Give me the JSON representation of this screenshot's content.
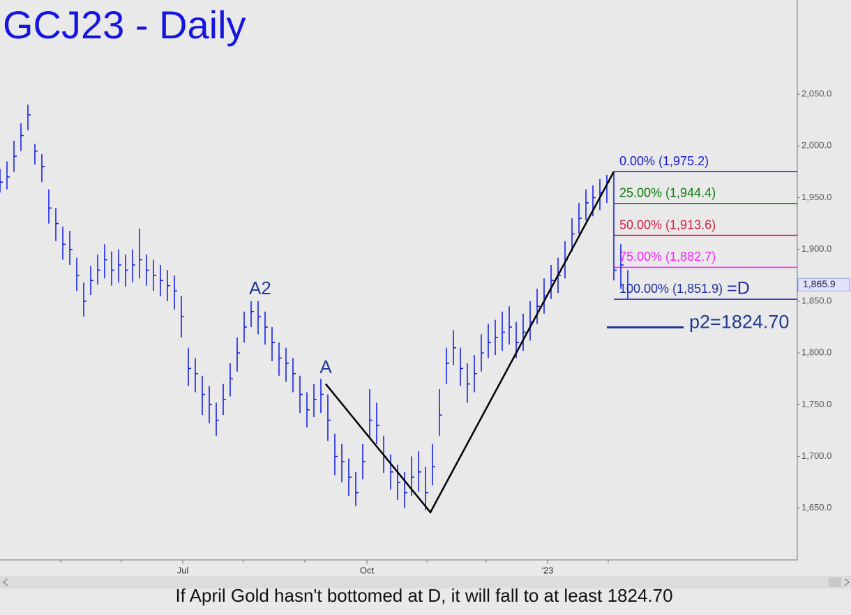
{
  "chart_data": {
    "type": "ohlc",
    "title": "GCJ23 - Daily",
    "caption": "If April Gold hasn't bottomed at D, it will fall to at least 1824.70",
    "color": "#0a14e6",
    "x": [
      0,
      1,
      2,
      3,
      4,
      5,
      6,
      7,
      8,
      9,
      10,
      11,
      12,
      13,
      14,
      15,
      16,
      17,
      18,
      19,
      20,
      21,
      22,
      23,
      24,
      25,
      26,
      27,
      28,
      29,
      30,
      31,
      32,
      33,
      34,
      35,
      36,
      37,
      38,
      39,
      40,
      41,
      42,
      43,
      44,
      45,
      46,
      47,
      48,
      49,
      50,
      51,
      52,
      53,
      54,
      55,
      56,
      57,
      58,
      59,
      60,
      61,
      62,
      63,
      64,
      65,
      66,
      67,
      68,
      69,
      70,
      71,
      72,
      73,
      74,
      75,
      76,
      77,
      78,
      79,
      80,
      81,
      82,
      83,
      84,
      85,
      86,
      87,
      88,
      89,
      90
    ],
    "high": [
      1978,
      1985,
      2005,
      2022,
      2040,
      2002,
      1992,
      1958,
      1940,
      1922,
      1918,
      1892,
      1868,
      1884,
      1895,
      1905,
      1898,
      1900,
      1895,
      1900,
      1920,
      1895,
      1890,
      1885,
      1880,
      1875,
      1855,
      1805,
      1795,
      1778,
      1768,
      1752,
      1770,
      1790,
      1815,
      1840,
      1850,
      1850,
      1840,
      1825,
      1810,
      1805,
      1795,
      1778,
      1762,
      1770,
      1775,
      1760,
      1722,
      1712,
      1698,
      1685,
      1712,
      1765,
      1752,
      1720,
      1702,
      1692,
      1685,
      1700,
      1705,
      1690,
      1712,
      1765,
      1805,
      1822,
      1805,
      1790,
      1798,
      1818,
      1828,
      1832,
      1840,
      1845,
      1830,
      1838,
      1850,
      1862,
      1872,
      1885,
      1892,
      1908,
      1930,
      1945,
      1958,
      1962,
      1968,
      1972,
      1975,
      1905,
      1880
    ],
    "low": [
      1955,
      1958,
      1975,
      1995,
      2015,
      1982,
      1965,
      1925,
      1908,
      1890,
      1885,
      1860,
      1835,
      1856,
      1866,
      1872,
      1865,
      1868,
      1864,
      1868,
      1872,
      1865,
      1860,
      1855,
      1850,
      1842,
      1815,
      1768,
      1762,
      1740,
      1732,
      1720,
      1740,
      1758,
      1782,
      1810,
      1825,
      1818,
      1808,
      1792,
      1778,
      1772,
      1762,
      1742,
      1728,
      1738,
      1742,
      1715,
      1682,
      1675,
      1662,
      1652,
      1678,
      1718,
      1712,
      1684,
      1668,
      1658,
      1650,
      1662,
      1666,
      1648,
      1672,
      1720,
      1770,
      1788,
      1768,
      1752,
      1762,
      1782,
      1795,
      1798,
      1802,
      1808,
      1795,
      1802,
      1812,
      1828,
      1838,
      1852,
      1858,
      1872,
      1898,
      1915,
      1928,
      1932,
      1938,
      1945,
      1870,
      1862,
      1852
    ],
    "close": [
      1965,
      1970,
      1990,
      2010,
      2030,
      1995,
      1980,
      1940,
      1925,
      1905,
      1900,
      1875,
      1850,
      1870,
      1880,
      1890,
      1880,
      1885,
      1880,
      1885,
      1890,
      1880,
      1875,
      1870,
      1865,
      1860,
      1835,
      1785,
      1780,
      1760,
      1750,
      1735,
      1755,
      1775,
      1800,
      1825,
      1840,
      1835,
      1825,
      1810,
      1795,
      1790,
      1780,
      1760,
      1745,
      1755,
      1760,
      1735,
      1700,
      1695,
      1680,
      1665,
      1695,
      1735,
      1730,
      1700,
      1685,
      1675,
      1665,
      1680,
      1685,
      1665,
      1690,
      1740,
      1790,
      1805,
      1785,
      1770,
      1780,
      1800,
      1810,
      1815,
      1820,
      1825,
      1810,
      1820,
      1830,
      1845,
      1855,
      1870,
      1875,
      1890,
      1915,
      1930,
      1945,
      1950,
      1955,
      1965,
      1880,
      1885,
      1866
    ],
    "xlim": [
      0,
      114.3
    ],
    "ylim": [
      1600,
      2141
    ],
    "xticks": [
      {
        "value": 26.2,
        "label": "Jul"
      },
      {
        "value": 52.6,
        "label": "Oct"
      },
      {
        "value": 78.5,
        "label": "'23"
      }
    ],
    "xminor": [
      8.7,
      17.4,
      34.9,
      43.7,
      61.2,
      69.7,
      87.2
    ],
    "yticks": [
      {
        "value": 1650,
        "label": "1,650.0"
      },
      {
        "value": 1700,
        "label": "1,700.0"
      },
      {
        "value": 1750,
        "label": "1,750.0"
      },
      {
        "value": 1800,
        "label": "1,800.0"
      },
      {
        "value": 1850,
        "label": "1,850.0"
      },
      {
        "value": 1900,
        "label": "1,900.0"
      },
      {
        "value": 1950,
        "label": "1,950.0"
      },
      {
        "value": 2000,
        "label": "2,000.0"
      },
      {
        "value": 2050,
        "label": "2,050.0"
      }
    ],
    "last_price": {
      "value": 1865.9,
      "label": "1,865.9"
    },
    "fib_x": 88,
    "fib": [
      {
        "label": "0.00% (1,975.2)",
        "value": 1975.2,
        "color": "#1a1ad6"
      },
      {
        "label": "25.00% (1,944.4)",
        "value": 1944.4,
        "color": "#0a7a0a"
      },
      {
        "label": "50.00% (1,913.6)",
        "value": 1913.6,
        "color": "#d02040"
      },
      {
        "label": "75.00% (1,882.7)",
        "value": 1882.7,
        "color": "#ff22ff"
      },
      {
        "label": "100.00% (1,851.9)",
        "value": 1851.9,
        "color": "#1f2fa0",
        "suffix": "=D"
      }
    ],
    "target": {
      "label": "p2=1824.70",
      "value": 1824.7,
      "color": "#1f3a93"
    },
    "pattern": {
      "x": [
        46.7,
        61.7,
        88.0
      ],
      "y": [
        1770,
        1646,
        1975.2
      ]
    },
    "annotations": [
      "A2",
      "A"
    ]
  }
}
